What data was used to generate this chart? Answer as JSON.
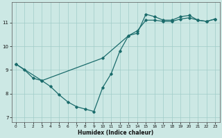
{
  "xlabel": "Humidex (Indice chaleur)",
  "bg_color": "#cce8e4",
  "grid_color": "#a0ccc8",
  "line_color": "#1a6b6b",
  "zigzag_x": [
    0,
    1,
    2,
    3,
    4,
    5,
    6,
    7,
    8,
    9,
    10,
    11,
    12,
    13,
    14,
    15,
    16,
    17,
    18,
    19,
    20,
    21,
    22,
    23
  ],
  "zigzag_y": [
    9.25,
    9.0,
    8.65,
    8.55,
    8.3,
    7.95,
    7.65,
    7.45,
    7.35,
    7.25,
    8.25,
    8.85,
    9.8,
    10.45,
    10.55,
    11.35,
    11.25,
    11.1,
    11.1,
    11.25,
    11.3,
    11.1,
    11.05,
    11.15
  ],
  "straight_x": [
    0,
    3,
    10,
    13,
    14,
    15,
    16,
    17,
    18,
    19,
    20,
    21,
    22,
    23
  ],
  "straight_y": [
    9.25,
    8.55,
    9.5,
    10.45,
    10.65,
    11.1,
    11.1,
    11.05,
    11.05,
    11.15,
    11.2,
    11.1,
    11.05,
    11.15
  ],
  "ylim": [
    6.8,
    11.85
  ],
  "xlim": [
    -0.5,
    23.5
  ],
  "yticks": [
    7,
    8,
    9,
    10,
    11
  ],
  "xticks": [
    0,
    1,
    2,
    3,
    4,
    5,
    6,
    7,
    8,
    9,
    10,
    11,
    12,
    13,
    14,
    15,
    16,
    17,
    18,
    19,
    20,
    21,
    22,
    23
  ]
}
